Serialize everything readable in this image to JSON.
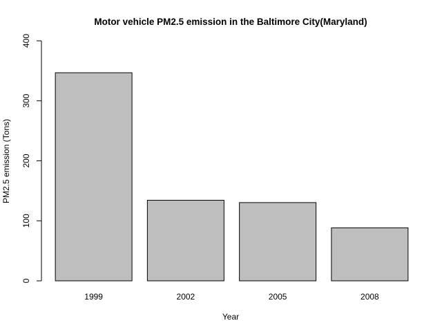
{
  "chart_data": {
    "type": "bar",
    "title": "Motor vehicle PM2.5 emission in the Baltimore City(Maryland)",
    "xlabel": "Year",
    "ylabel": "PM2.5 emission (Tons)",
    "categories": [
      "1999",
      "2002",
      "2005",
      "2008"
    ],
    "values": [
      346.8,
      134.3,
      130.4,
      88.3
    ],
    "ylim": [
      0,
      400
    ],
    "yticks": [
      0,
      100,
      200,
      300,
      400
    ],
    "grid": false,
    "legend": "none",
    "colors": {
      "bar_fill": "#bebebe",
      "bar_stroke": "#000000",
      "axis": "#000000",
      "background": "#ffffff"
    }
  }
}
